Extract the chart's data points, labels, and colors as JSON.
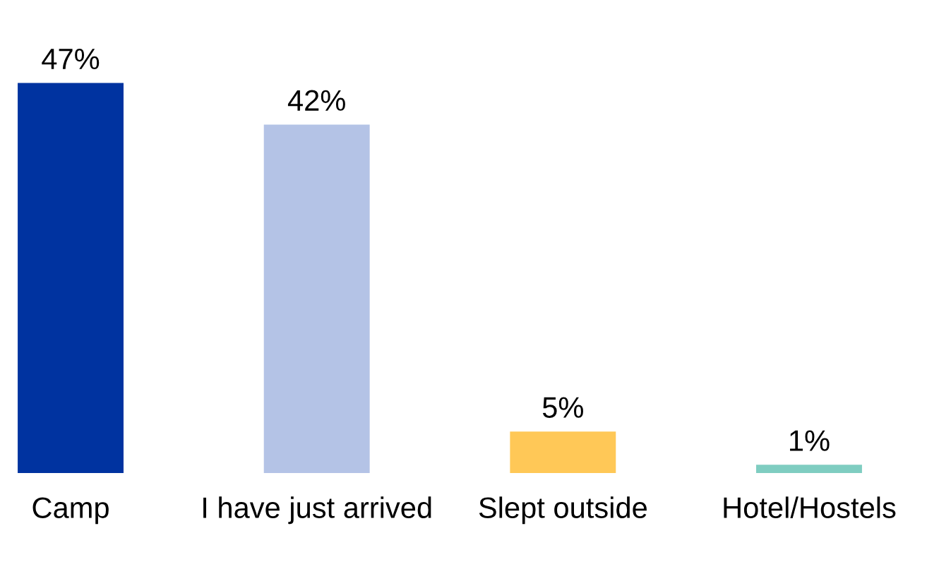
{
  "chart_data": {
    "type": "bar",
    "categories": [
      "Camp",
      "I have just arrived",
      "Slept outside",
      "Hotel/Hostels"
    ],
    "values": [
      47,
      42,
      5,
      1
    ],
    "colors": [
      "#0033a0",
      "#b4c3e6",
      "#ffc857",
      "#7fcdc1"
    ],
    "value_labels": [
      "47%",
      "42%",
      "5%",
      "1%"
    ],
    "tick_labels": "x"
  }
}
